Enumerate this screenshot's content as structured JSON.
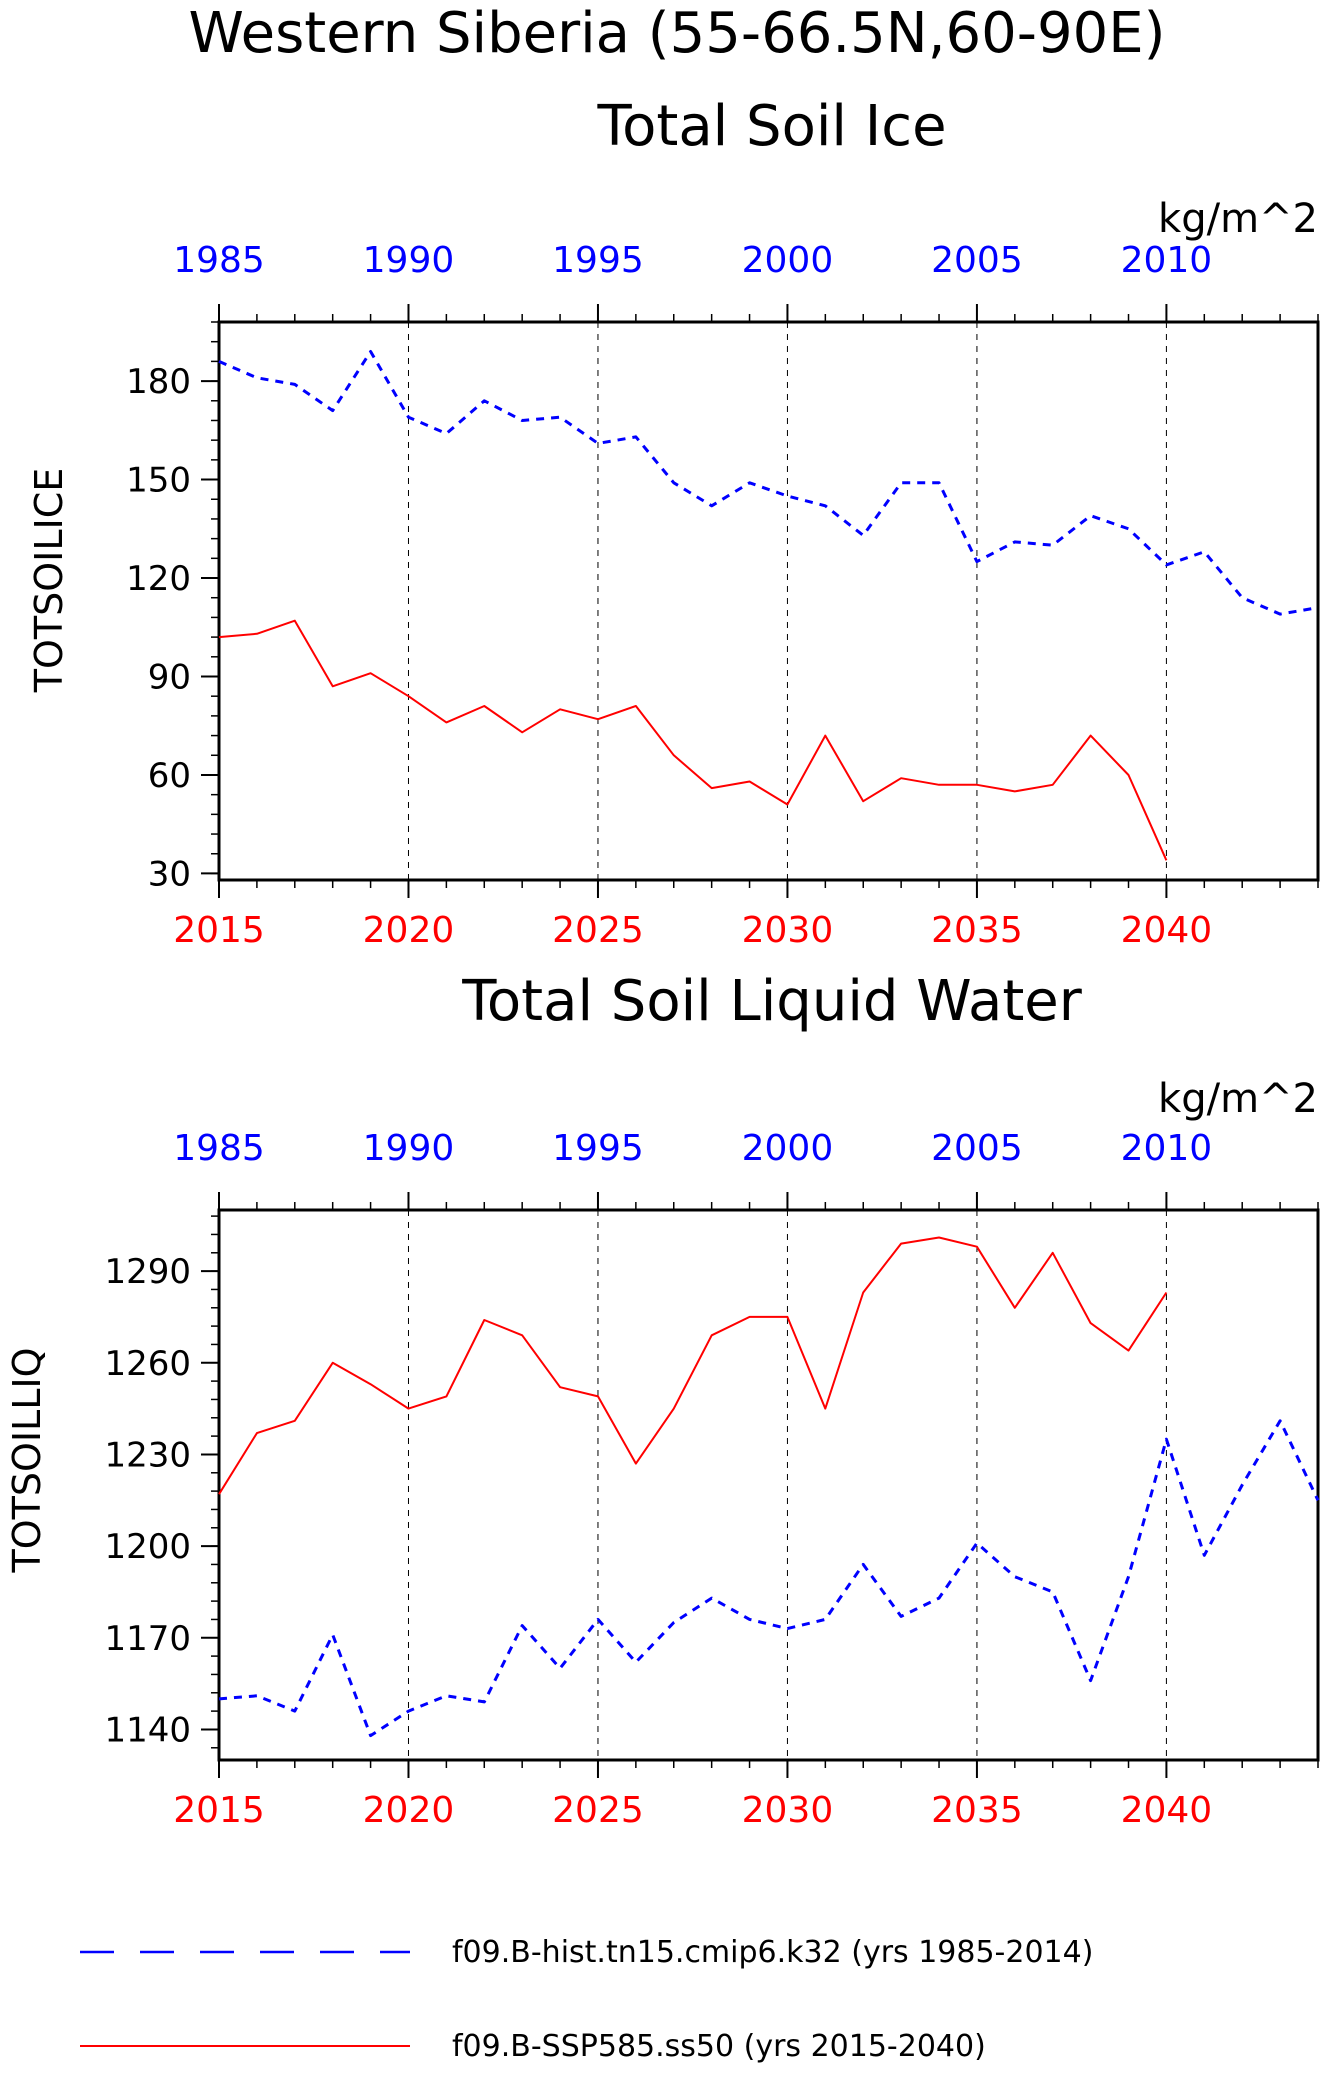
{
  "title": "Western Siberia (55-66.5N,60-90E)",
  "colors": {
    "hist": "#0000ff",
    "ssp": "#ff0000",
    "axis": "#000000"
  },
  "legend": [
    {
      "label": "f09.B-hist.tn15.cmip6.k32 (yrs 1985-2014)",
      "color": "#0000ff",
      "style": "dashed"
    },
    {
      "label": "f09.B-SSP585.ss50 (yrs 2015-2040)",
      "color": "#ff0000",
      "style": "solid"
    }
  ],
  "chart_data": [
    {
      "type": "line",
      "title": "Total Soil Ice",
      "ylabel": "TOTSOILICE",
      "units": "kg/m^2",
      "ylim": [
        28,
        198
      ],
      "yticks": [
        30,
        60,
        90,
        120,
        150,
        180
      ],
      "top_axis": {
        "xlim": [
          1985,
          2014
        ],
        "ticks": [
          1985,
          1990,
          1995,
          2000,
          2005,
          2010
        ]
      },
      "bottom_axis": {
        "xlim": [
          2015,
          2044
        ],
        "ticks": [
          2015,
          2020,
          2025,
          2030,
          2035,
          2040
        ]
      },
      "vgrid": "dashed at major ticks",
      "series": [
        {
          "name": "f09.B-hist.tn15.cmip6.k32 (yrs 1985-2014)",
          "axis": "top",
          "color": "#0000ff",
          "style": "dashed",
          "x": [
            1985,
            1986,
            1987,
            1988,
            1989,
            1990,
            1991,
            1992,
            1993,
            1994,
            1995,
            1996,
            1997,
            1998,
            1999,
            2000,
            2001,
            2002,
            2003,
            2004,
            2005,
            2006,
            2007,
            2008,
            2009,
            2010,
            2011,
            2012,
            2013,
            2014
          ],
          "values": [
            186,
            181,
            179,
            171,
            189,
            169,
            164,
            174,
            168,
            169,
            161,
            163,
            149,
            142,
            149,
            145,
            142,
            133,
            149,
            149,
            125,
            131,
            130,
            139,
            135,
            124,
            128,
            114,
            109,
            111
          ]
        },
        {
          "name": "f09.B-SSP585.ss50 (yrs 2015-2040)",
          "axis": "bottom",
          "color": "#ff0000",
          "style": "solid",
          "x": [
            2015,
            2016,
            2017,
            2018,
            2019,
            2020,
            2021,
            2022,
            2023,
            2024,
            2025,
            2026,
            2027,
            2028,
            2029,
            2030,
            2031,
            2032,
            2033,
            2034,
            2035,
            2036,
            2037,
            2038,
            2039,
            2040
          ],
          "values": [
            102,
            103,
            107,
            87,
            91,
            84,
            76,
            81,
            73,
            80,
            77,
            81,
            66,
            56,
            58,
            51,
            72,
            52,
            59,
            57,
            57,
            55,
            57,
            72,
            60,
            34
          ]
        }
      ]
    },
    {
      "type": "line",
      "title": "Total Soil Liquid Water",
      "ylabel": "TOTSOILLIQ",
      "units": "kg/m^2",
      "ylim": [
        1130,
        1310
      ],
      "yticks": [
        1140,
        1170,
        1200,
        1230,
        1260,
        1290
      ],
      "top_axis": {
        "xlim": [
          1985,
          2014
        ],
        "ticks": [
          1985,
          1990,
          1995,
          2000,
          2005,
          2010
        ]
      },
      "bottom_axis": {
        "xlim": [
          2015,
          2044
        ],
        "ticks": [
          2015,
          2020,
          2025,
          2030,
          2035,
          2040
        ]
      },
      "vgrid": "dashed at major ticks",
      "series": [
        {
          "name": "f09.B-hist.tn15.cmip6.k32 (yrs 1985-2014)",
          "axis": "top",
          "color": "#0000ff",
          "style": "dashed",
          "x": [
            1985,
            1986,
            1987,
            1988,
            1989,
            1990,
            1991,
            1992,
            1993,
            1994,
            1995,
            1996,
            1997,
            1998,
            1999,
            2000,
            2001,
            2002,
            2003,
            2004,
            2005,
            2006,
            2007,
            2008,
            2009,
            2010,
            2011,
            2012,
            2013,
            2014
          ],
          "values": [
            1150,
            1151,
            1146,
            1171,
            1138,
            1146,
            1151,
            1149,
            1174,
            1160,
            1176,
            1162,
            1175,
            1183,
            1176,
            1173,
            1176,
            1194,
            1177,
            1183,
            1201,
            1190,
            1185,
            1156,
            1190,
            1235,
            1197,
            1220,
            1241,
            1215
          ]
        },
        {
          "name": "f09.B-SSP585.ss50 (yrs 2015-2040)",
          "axis": "bottom",
          "color": "#ff0000",
          "style": "solid",
          "x": [
            2015,
            2016,
            2017,
            2018,
            2019,
            2020,
            2021,
            2022,
            2023,
            2024,
            2025,
            2026,
            2027,
            2028,
            2029,
            2030,
            2031,
            2032,
            2033,
            2034,
            2035,
            2036,
            2037,
            2038,
            2039,
            2040
          ],
          "values": [
            1217,
            1237,
            1241,
            1260,
            1253,
            1245,
            1249,
            1274,
            1269,
            1252,
            1249,
            1227,
            1245,
            1269,
            1275,
            1275,
            1245,
            1283,
            1299,
            1301,
            1298,
            1278,
            1296,
            1273,
            1264,
            1283
          ]
        }
      ]
    }
  ]
}
